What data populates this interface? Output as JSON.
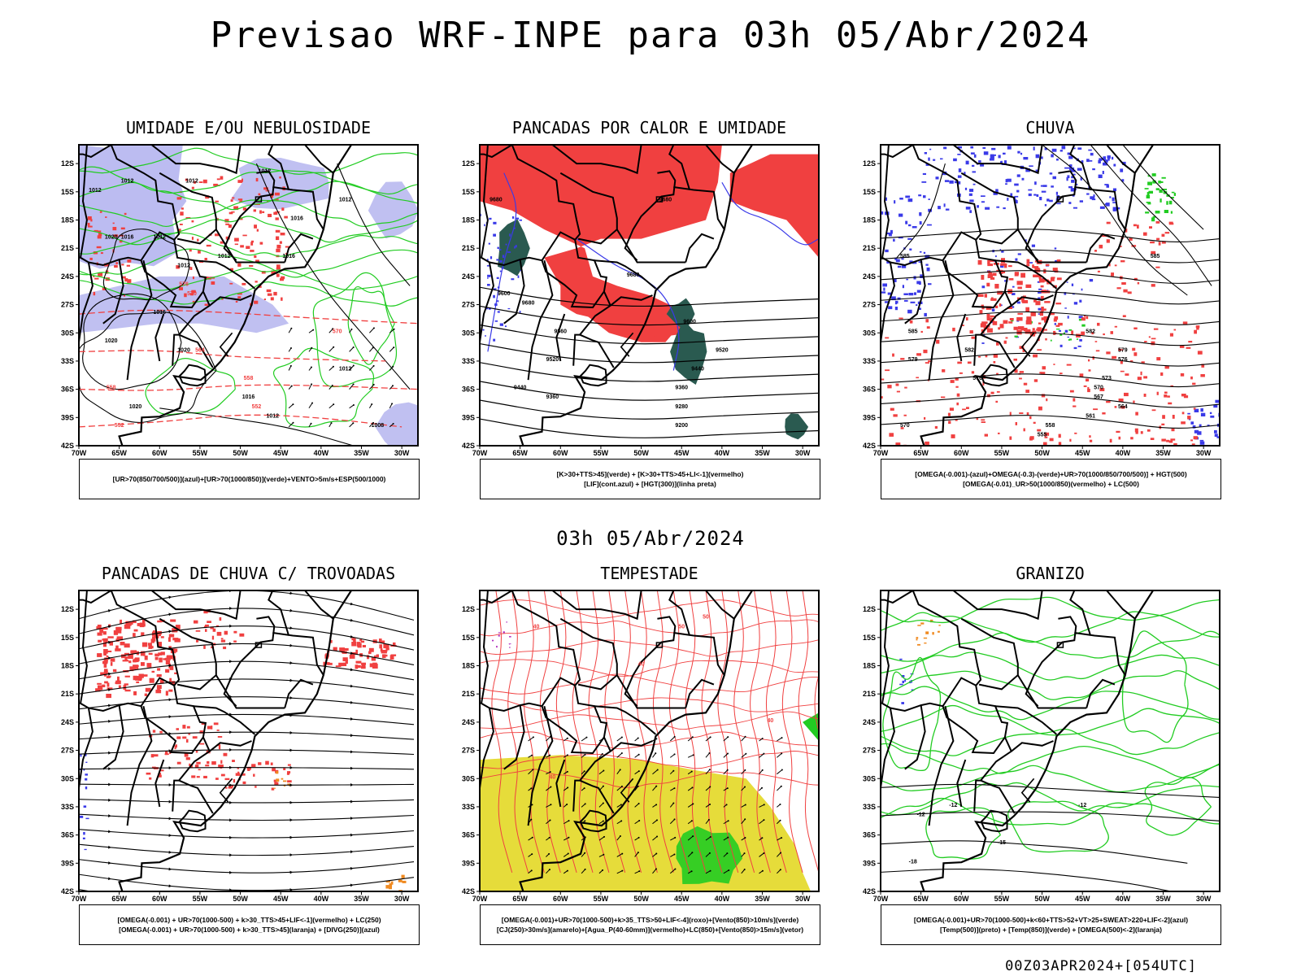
{
  "title": "Previsao WRF-INPE  para 03h 05/Abr/2024",
  "mid_date": "03h 05/Abr/2024",
  "footer": "00Z03APR2024+[054UTC]",
  "axis": {
    "lat_labels": [
      "12S",
      "15S",
      "18S",
      "21S",
      "24S",
      "27S",
      "30S",
      "33S",
      "36S",
      "39S",
      "42S"
    ],
    "lon_labels": [
      "70W",
      "65W",
      "60W",
      "55W",
      "50W",
      "45W",
      "40W",
      "35W",
      "30W"
    ]
  },
  "colors": {
    "red": "#f04040",
    "blue": "#3a3ae8",
    "green": "#22cc22",
    "lavender": "#b0b0ee",
    "yellow": "#e6dc3a",
    "teal": "#2a5a50",
    "orange": "#f08a20",
    "purple": "#b030c0"
  },
  "panels": [
    {
      "title": "UMIDADE E/OU NEBULOSIDADE",
      "legend": [
        "[UR>70(850/700/500)](azul)+[UR>70(1000/850)](verde)+VENTO>5m/s+ESP(500/1000)"
      ],
      "labels": [
        {
          "t": "1012",
          "lo": -64,
          "la": -14
        },
        {
          "t": "1012",
          "lo": -56,
          "la": -14
        },
        {
          "t": "1012",
          "lo": -47,
          "la": -13
        },
        {
          "t": "1012",
          "lo": -68,
          "la": -15
        },
        {
          "t": "1016",
          "lo": -43,
          "la": -18
        },
        {
          "t": "1020",
          "lo": -66,
          "la": -20
        },
        {
          "t": "1016",
          "lo": -64,
          "la": -20
        },
        {
          "t": "1012",
          "lo": -60,
          "la": -20
        },
        {
          "t": "1012",
          "lo": -52,
          "la": -22
        },
        {
          "t": "1016",
          "lo": -44,
          "la": -22
        },
        {
          "t": "1012",
          "lo": -37,
          "la": -16
        },
        {
          "t": "1012",
          "lo": -57,
          "la": -23
        },
        {
          "t": "1016",
          "lo": -60,
          "la": -28
        },
        {
          "t": "1020",
          "lo": -66,
          "la": -31
        },
        {
          "t": "1020",
          "lo": -57,
          "la": -32
        },
        {
          "t": "1012",
          "lo": -37,
          "la": -34
        },
        {
          "t": "1016",
          "lo": -49,
          "la": -37
        },
        {
          "t": "1020",
          "lo": -63,
          "la": -38
        },
        {
          "t": "1012",
          "lo": -46,
          "la": -39
        },
        {
          "t": "1008",
          "lo": -33,
          "la": -40
        },
        {
          "t": "570",
          "lo": -56,
          "la": -26
        },
        {
          "t": "570",
          "lo": -38,
          "la": -30
        },
        {
          "t": "564",
          "lo": -55,
          "la": -32
        },
        {
          "t": "558",
          "lo": -49,
          "la": -35
        },
        {
          "t": "558",
          "lo": -66,
          "la": -36
        },
        {
          "t": "552",
          "lo": -48,
          "la": -38
        },
        {
          "t": "552",
          "lo": -65,
          "la": -40
        },
        {
          "t": "576",
          "lo": -57,
          "la": -25
        }
      ]
    },
    {
      "title": "PANCADAS POR CALOR E UMIDADE",
      "legend": [
        "[K>30+TTS>45](verde) + [K>30+TTS>45+LI<-1](vermelho)",
        "[LIF](cont.azul) + [HGT(300)](linha preta)"
      ],
      "labels": [
        {
          "t": "9680",
          "lo": -68,
          "la": -16
        },
        {
          "t": "9680",
          "lo": -47,
          "la": -16
        },
        {
          "t": "9680",
          "lo": -51,
          "la": -24
        },
        {
          "t": "9600",
          "lo": -67,
          "la": -26
        },
        {
          "t": "9680",
          "lo": -64,
          "la": -27
        },
        {
          "t": "9600",
          "lo": -44,
          "la": -29
        },
        {
          "t": "9560",
          "lo": -60,
          "la": -30
        },
        {
          "t": "9520",
          "lo": -40,
          "la": -32
        },
        {
          "t": "9520",
          "lo": -61,
          "la": -33
        },
        {
          "t": "9440",
          "lo": -43,
          "la": -34
        },
        {
          "t": "9440",
          "lo": -65,
          "la": -36
        },
        {
          "t": "9360",
          "lo": -45,
          "la": -36
        },
        {
          "t": "9360",
          "lo": -61,
          "la": -37
        },
        {
          "t": "9280",
          "lo": -45,
          "la": -38
        },
        {
          "t": "9200",
          "lo": -45,
          "la": -40
        }
      ]
    },
    {
      "title": "CHUVA",
      "legend": [
        "[OMEGA(-0.001)-(azul)+OMEGA(-0.3)-(verde)+UR>70(1000/850/700/500)] + HGT(500)",
        "[OMEGA(-0.01)_UR>50(1000/850)(vermelho) + LC(500)"
      ],
      "labels": [
        {
          "t": "585",
          "lo": -36,
          "la": -22
        },
        {
          "t": "585",
          "lo": -67,
          "la": -22
        },
        {
          "t": "582",
          "lo": -44,
          "la": -30
        },
        {
          "t": "585",
          "lo": -66,
          "la": -30
        },
        {
          "t": "582",
          "lo": -59,
          "la": -32
        },
        {
          "t": "579",
          "lo": -40,
          "la": -32
        },
        {
          "t": "579",
          "lo": -66,
          "la": -33
        },
        {
          "t": "576",
          "lo": -40,
          "la": -33
        },
        {
          "t": "576",
          "lo": -58,
          "la": -35
        },
        {
          "t": "573",
          "lo": -42,
          "la": -35
        },
        {
          "t": "570",
          "lo": -43,
          "la": -36
        },
        {
          "t": "567",
          "lo": -43,
          "la": -37
        },
        {
          "t": "564",
          "lo": -40,
          "la": -38
        },
        {
          "t": "561",
          "lo": -44,
          "la": -39
        },
        {
          "t": "558",
          "lo": -49,
          "la": -40
        },
        {
          "t": "570",
          "lo": -67,
          "la": -40
        },
        {
          "t": "555",
          "lo": -50,
          "la": -41
        }
      ]
    },
    {
      "title": "PANCADAS DE CHUVA C/ TROVOADAS",
      "legend": [
        "[OMEGA(-0.001) + UR>70(1000-500) + k>30_TTS>45+LIF<-1](vermelho) + LC(250)",
        "[OMEGA(-0.001) + UR>70(1000-500) + k>30_TTS>45](laranja) + [DIVG(250)](azul)"
      ],
      "labels": []
    },
    {
      "title": "TEMPESTADE",
      "legend": [
        "[OMEGA(-0.001)+UR>70(1000-500)+k>35_TTS>50+LIF<-4](roxo)+[Vento(850)>10m/s](verde)",
        "[CJ(250)>30m/s](amarelo)+[Agua_P(40-60mm)](vermelho)+LC(850)+[Vento(850)>15m/s](vetor)"
      ],
      "labels": [
        {
          "t": "40",
          "lo": -63,
          "la": -14
        },
        {
          "t": "50",
          "lo": -45,
          "la": -14
        },
        {
          "t": "40",
          "lo": -50,
          "la": -18
        },
        {
          "t": "50",
          "lo": -42,
          "la": -13
        },
        {
          "t": "40",
          "lo": -34,
          "la": -24
        },
        {
          "t": "40",
          "lo": -61,
          "la": -30
        }
      ]
    },
    {
      "title": "GRANIZO",
      "legend": [
        "[OMEGA(-0.001)+UR>70(1000-500)+k<60+TTS>52+VT>25+SWEAT>220+LIF<-2](azul)",
        "[Temp(500)](preto) + [Temp(850)](verde) + [OMEGA(500)<-2](laranja)"
      ],
      "labels": [
        {
          "t": "-12",
          "lo": -61,
          "la": -33
        },
        {
          "t": "-12",
          "lo": -45,
          "la": -33
        },
        {
          "t": "-12",
          "lo": -65,
          "la": -34
        },
        {
          "t": "-15",
          "lo": -55,
          "la": -37
        },
        {
          "t": "-18",
          "lo": -66,
          "la": -39
        }
      ]
    }
  ]
}
